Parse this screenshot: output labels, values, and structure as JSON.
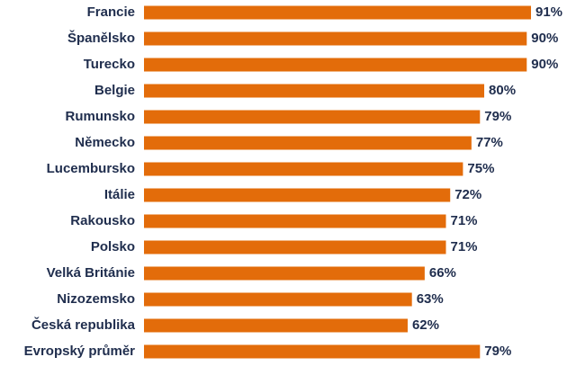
{
  "chart_data": {
    "type": "hbar",
    "categories": [
      "Francie",
      "Španělsko",
      "Turecko",
      "Belgie",
      "Rumunsko",
      "Německo",
      "Lucembursko",
      "Itálie",
      "Rakousko",
      "Polsko",
      "Velká Británie",
      "Nizozemsko",
      "Česká republika",
      "Evropský průměr"
    ],
    "values": [
      91,
      90,
      90,
      80,
      79,
      77,
      75,
      72,
      71,
      71,
      66,
      63,
      62,
      79
    ],
    "value_labels": [
      "91%",
      "90%",
      "90%",
      "80%",
      "79%",
      "77%",
      "75%",
      "72%",
      "71%",
      "71%",
      "66%",
      "63%",
      "62%",
      "79%"
    ],
    "color": "#e36c0a"
  }
}
